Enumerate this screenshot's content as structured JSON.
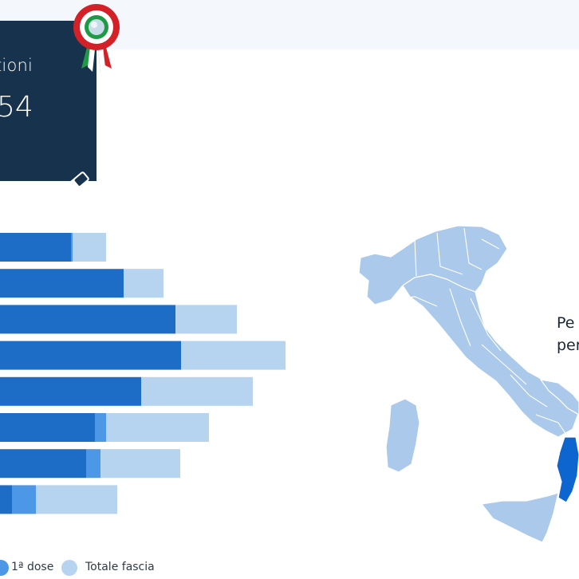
{
  "summary": {
    "label": "tioni",
    "value": "54"
  },
  "icons": {
    "eraser": "eraser-icon",
    "rosette": "italian-cockade-rosette"
  },
  "colors": {
    "second_dose": "#1d6dc7",
    "first_dose": "#4d98e6",
    "total_band": "#b6d3f0",
    "card_bg": "#17324d",
    "map_region": "#abc9ea",
    "map_highlight": "#0d66d0"
  },
  "chart_data": {
    "type": "bar",
    "orientation": "horizontal",
    "stacked": true,
    "series": [
      {
        "name": "1ª dose",
        "values": [
          1.5,
          0,
          0,
          0,
          0,
          6,
          8,
          14
        ]
      },
      {
        "name": "Totale fascia",
        "values": [
          20,
          22,
          35,
          57,
          63,
          58,
          44,
          46
        ]
      }
    ],
    "visible_bar_ends": [
      [
        89,
        91,
        133
      ],
      [
        155,
        155,
        205
      ],
      [
        220,
        220,
        297
      ],
      [
        227,
        227,
        358
      ],
      [
        177,
        177,
        317
      ],
      [
        119,
        133,
        262
      ],
      [
        108,
        126,
        226
      ],
      [
        15,
        45,
        147
      ]
    ],
    "legend": [
      "1ª dose",
      "Totale fascia"
    ],
    "legend_position": "bottom"
  },
  "legend": {
    "first_dose": "1ª dose",
    "total": "Totale fascia"
  },
  "map": {
    "caption_line1": "Pe",
    "caption_line2": "per",
    "highlighted_region": "Calabria"
  }
}
